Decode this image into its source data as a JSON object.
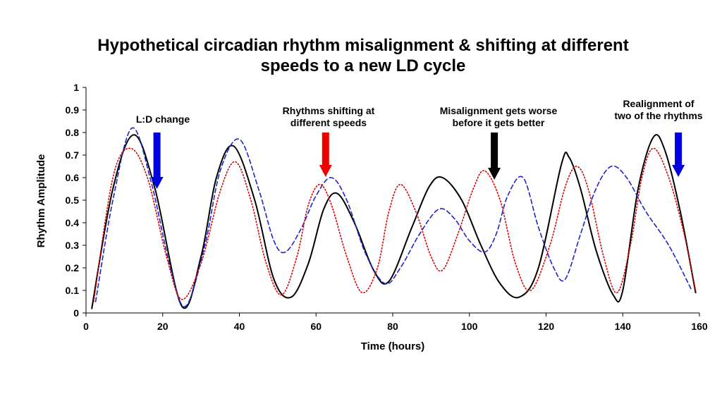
{
  "chart_data": {
    "type": "line",
    "title_lines": [
      "Hypothetical circadian rhythm misalignment & shifting at different",
      "speeds to a new LD cycle"
    ],
    "xlabel": "Time (hours)",
    "ylabel": "Rhythm Amplitude",
    "xlim": [
      0,
      160
    ],
    "ylim": [
      0,
      1
    ],
    "x_ticks": [
      0,
      20,
      40,
      60,
      80,
      100,
      120,
      140,
      160
    ],
    "y_ticks": [
      0,
      0.1,
      0.2,
      0.3,
      0.4,
      0.5,
      0.6,
      0.7,
      0.8,
      0.9,
      1
    ],
    "grid": false,
    "legend": "none",
    "series": [
      {
        "color": "#000000",
        "style": "solid",
        "points": [
          [
            1.5,
            0.02
          ],
          [
            7,
            0.55
          ],
          [
            12.5,
            0.79
          ],
          [
            18,
            0.55
          ],
          [
            25,
            0.03
          ],
          [
            30,
            0.25
          ],
          [
            34,
            0.6
          ],
          [
            38.5,
            0.74
          ],
          [
            44,
            0.5
          ],
          [
            49,
            0.15
          ],
          [
            53.5,
            0.07
          ],
          [
            58,
            0.22
          ],
          [
            62,
            0.46
          ],
          [
            65.5,
            0.53
          ],
          [
            70,
            0.4
          ],
          [
            75,
            0.19
          ],
          [
            79,
            0.14
          ],
          [
            85,
            0.38
          ],
          [
            89.5,
            0.56
          ],
          [
            93,
            0.6
          ],
          [
            98,
            0.5
          ],
          [
            103,
            0.3
          ],
          [
            108,
            0.13
          ],
          [
            113,
            0.07
          ],
          [
            118,
            0.2
          ],
          [
            124,
            0.66
          ],
          [
            126,
            0.69
          ],
          [
            129,
            0.55
          ],
          [
            133,
            0.28
          ],
          [
            137.5,
            0.08
          ],
          [
            140,
            0.1
          ],
          [
            144,
            0.55
          ],
          [
            148,
            0.78
          ],
          [
            151,
            0.72
          ],
          [
            155,
            0.45
          ],
          [
            159,
            0.09
          ]
        ]
      },
      {
        "color": "#2222cc",
        "style": "dashed",
        "points": [
          [
            2.5,
            0.05
          ],
          [
            7,
            0.5
          ],
          [
            12,
            0.82
          ],
          [
            17,
            0.58
          ],
          [
            22,
            0.2
          ],
          [
            26,
            0.03
          ],
          [
            31,
            0.3
          ],
          [
            35,
            0.63
          ],
          [
            40,
            0.77
          ],
          [
            45,
            0.55
          ],
          [
            49,
            0.32
          ],
          [
            52,
            0.27
          ],
          [
            56,
            0.37
          ],
          [
            60,
            0.52
          ],
          [
            64,
            0.6
          ],
          [
            68,
            0.5
          ],
          [
            73,
            0.26
          ],
          [
            78,
            0.13
          ],
          [
            82,
            0.2
          ],
          [
            87,
            0.35
          ],
          [
            92,
            0.46
          ],
          [
            96,
            0.42
          ],
          [
            100,
            0.32
          ],
          [
            104,
            0.27
          ],
          [
            107,
            0.35
          ],
          [
            110,
            0.52
          ],
          [
            114,
            0.6
          ],
          [
            118,
            0.38
          ],
          [
            122,
            0.2
          ],
          [
            125,
            0.15
          ],
          [
            129,
            0.35
          ],
          [
            133,
            0.55
          ],
          [
            137,
            0.65
          ],
          [
            141,
            0.6
          ],
          [
            146,
            0.45
          ],
          [
            152,
            0.3
          ],
          [
            158,
            0.1
          ]
        ]
      },
      {
        "color": "#dd0000",
        "style": "dotted",
        "points": [
          [
            2,
            0.05
          ],
          [
            7,
            0.6
          ],
          [
            11.5,
            0.73
          ],
          [
            16,
            0.6
          ],
          [
            21,
            0.25
          ],
          [
            25,
            0.06
          ],
          [
            30,
            0.22
          ],
          [
            35,
            0.54
          ],
          [
            39,
            0.67
          ],
          [
            43,
            0.5
          ],
          [
            47,
            0.22
          ],
          [
            51,
            0.08
          ],
          [
            55,
            0.25
          ],
          [
            58,
            0.48
          ],
          [
            61,
            0.57
          ],
          [
            64,
            0.48
          ],
          [
            68,
            0.25
          ],
          [
            72,
            0.09
          ],
          [
            76,
            0.2
          ],
          [
            79,
            0.45
          ],
          [
            82,
            0.57
          ],
          [
            86,
            0.45
          ],
          [
            90,
            0.25
          ],
          [
            93,
            0.19
          ],
          [
            97,
            0.35
          ],
          [
            101,
            0.55
          ],
          [
            104,
            0.63
          ],
          [
            108,
            0.5
          ],
          [
            112,
            0.22
          ],
          [
            116,
            0.1
          ],
          [
            121,
            0.3
          ],
          [
            125,
            0.56
          ],
          [
            128,
            0.65
          ],
          [
            131,
            0.55
          ],
          [
            135,
            0.25
          ],
          [
            138.5,
            0.09
          ],
          [
            142,
            0.3
          ],
          [
            145,
            0.6
          ],
          [
            148,
            0.73
          ],
          [
            152,
            0.6
          ],
          [
            156,
            0.35
          ],
          [
            159,
            0.1
          ]
        ]
      }
    ],
    "annotations": [
      {
        "lines": [
          "L:D change"
        ],
        "x": 18.5,
        "arrow_color": "#0000dd"
      },
      {
        "lines": [
          "Rhythms shifting at",
          "different speeds"
        ],
        "x": 62.5,
        "arrow_color": "#ee0000"
      },
      {
        "lines": [
          "Misalignment gets worse",
          "before it gets better"
        ],
        "x": 106.5,
        "arrow_color": "#000000"
      },
      {
        "lines": [
          "Realignment of",
          "two of  the rhythms"
        ],
        "x": 154.5,
        "arrow_color": "#0000dd"
      }
    ]
  }
}
